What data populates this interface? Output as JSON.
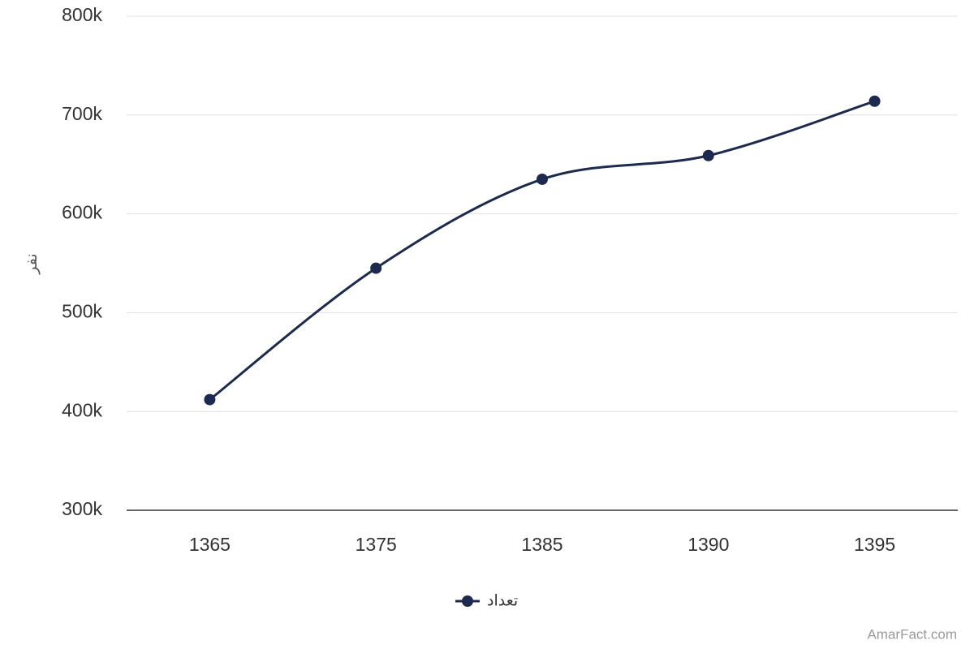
{
  "chart_data": {
    "type": "line",
    "y_label": "نفر",
    "categories": [
      "1365",
      "1375",
      "1385",
      "1390",
      "1395"
    ],
    "series": [
      {
        "name": "تعداد",
        "color": "#1b2a4e",
        "values": [
          412000,
          545000,
          635000,
          659000,
          714000
        ]
      }
    ],
    "ylim": [
      300000,
      800000
    ],
    "yticks": [
      {
        "value": 300000,
        "label": "300k"
      },
      {
        "value": 400000,
        "label": "400k"
      },
      {
        "value": 500000,
        "label": "500k"
      },
      {
        "value": 600000,
        "label": "600k"
      },
      {
        "value": 700000,
        "label": "700k"
      },
      {
        "value": 800000,
        "label": "800k"
      }
    ],
    "grid": true,
    "legend": "bottom",
    "credit": "AmarFact.com"
  }
}
